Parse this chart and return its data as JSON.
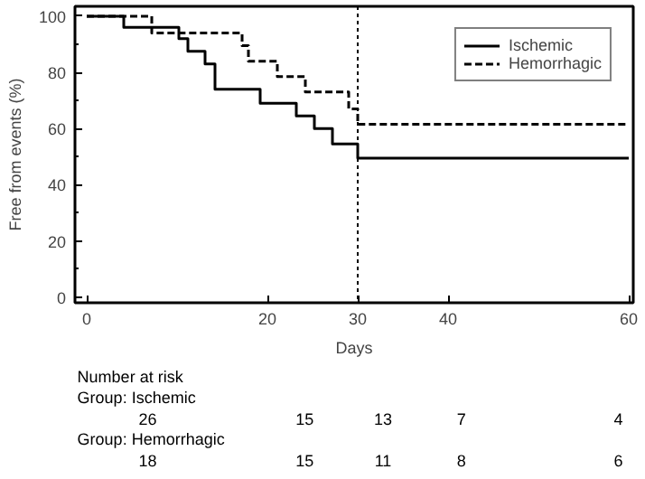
{
  "chart_data": {
    "type": "step",
    "xlabel": "Days",
    "ylabel": "Free from events (%)",
    "xlim": [
      -1.3,
      60.5
    ],
    "ylim": [
      -2,
      103.5
    ],
    "xticks": [
      0,
      20,
      30,
      40,
      60
    ],
    "yticks": [
      0,
      20,
      40,
      60,
      80,
      100
    ],
    "grid": false,
    "legend": "top right",
    "marker": "none",
    "ref_lines": [
      {
        "axis": "x",
        "value": 30,
        "label": null,
        "color": "#000000",
        "line_style": "dotted"
      }
    ],
    "series": [
      {
        "name": "Ischemic",
        "color": "#000000",
        "line_style": "solid",
        "x": [
          0,
          4.1,
          10.2,
          11.2,
          13.1,
          14.2,
          19.2,
          23.2,
          25.2,
          27.2,
          30,
          60
        ],
        "values": [
          100,
          96,
          92,
          87.5,
          83,
          74,
          69,
          64.5,
          60,
          54.5,
          49.5,
          49.5
        ]
      },
      {
        "name": "Hemorrhagic",
        "color": "#000000",
        "line_style": "dashed",
        "x": [
          0,
          7.2,
          17.2,
          17.9,
          21.1,
          24.2,
          29,
          30,
          60
        ],
        "values": [
          100,
          94,
          89.5,
          84,
          78.5,
          73,
          67,
          61.5,
          61.5
        ]
      }
    ],
    "annotations": [
      "Number at risk",
      "Group: Ischemic",
      "26",
      "15",
      "13",
      "7",
      "4",
      "Group: Hemorrhagic",
      "18",
      "15",
      "11",
      "8",
      "6"
    ]
  }
}
